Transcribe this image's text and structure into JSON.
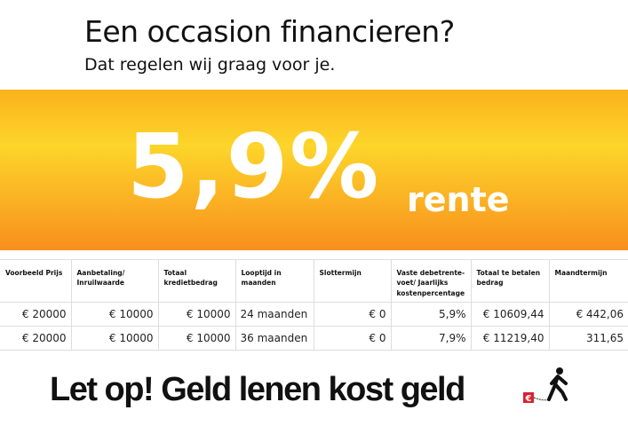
{
  "header": {
    "title": "Een occasion financieren?",
    "subtitle": "Dat regelen wij graag voor je."
  },
  "banner": {
    "rate": "5,9%",
    "rate_suffix": "rente",
    "colors": [
      "#fcd52a",
      "#f78f1d"
    ]
  },
  "table": {
    "headers": [
      "Voorbeeld Prijs",
      "Aanbetaling/ Inruilwaarde",
      "Totaal kredietbedrag",
      "Looptijd in maanden",
      "Slottermijn",
      "Vaste debetrente-voet/ Jaarlijks kostenpercentage",
      "Totaal te betalen bedrag",
      "Maandtermijn"
    ],
    "rows": [
      [
        "€ 20000",
        "€ 10000",
        "€ 10000",
        "24 maanden",
        "€ 0",
        "5,9%",
        "€ 10609,44",
        "€ 442,06"
      ],
      [
        "€ 20000",
        "€ 10000",
        "€ 10000",
        "36 maanden",
        "€ 0",
        "7,9%",
        "€ 11219,40",
        "311,65"
      ]
    ]
  },
  "footer": {
    "warning": "Let op! Geld lenen kost geld",
    "logo_icon": "walking-man-chained-euro-icon",
    "logo_color": "#d7232f"
  }
}
